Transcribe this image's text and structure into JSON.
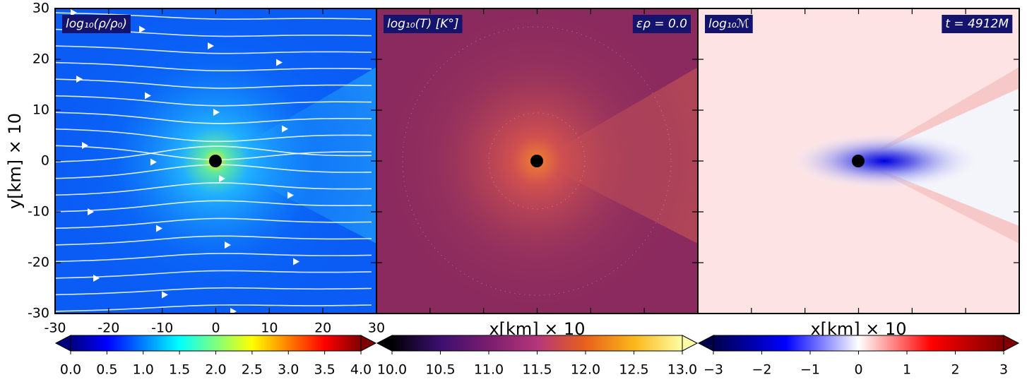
{
  "chart_data": [
    {
      "type": "heatmap",
      "title": "log₁₀(ρ/ρ₀)",
      "ylabel": "y[km] × 10",
      "xlim": [
        -30,
        30
      ],
      "ylim": [
        -30,
        30
      ],
      "xticks": [
        -30,
        -20,
        -10,
        0,
        10,
        20,
        30
      ],
      "yticks": [
        -30,
        -20,
        -10,
        0,
        10,
        20,
        30
      ],
      "clim": [
        0,
        4
      ],
      "cticks": [
        {
          "value": 0,
          "label": "0.0"
        },
        {
          "value": 0.5,
          "label": "0.5"
        },
        {
          "value": 1,
          "label": "1.0"
        },
        {
          "value": 1.5,
          "label": "1.5"
        },
        {
          "value": 2,
          "label": "2.0"
        },
        {
          "value": 2.5,
          "label": "2.5"
        },
        {
          "value": 3,
          "label": "3.0"
        },
        {
          "value": 3.5,
          "label": "3.5"
        },
        {
          "value": 4,
          "label": "4.0"
        }
      ],
      "colormap": [
        "#00007f",
        "#0000ff",
        "#007fff",
        "#00ffff",
        "#7fff7f",
        "#ffff00",
        "#ff7f00",
        "#ff0000",
        "#7f0000"
      ]
    },
    {
      "type": "heatmap",
      "title": "log₁₀(T) [K°]",
      "annotation": "ερ = 0.0",
      "xlabel": "x[km] × 10",
      "xlim": [
        -30,
        30
      ],
      "ylim": [
        -30,
        30
      ],
      "clim": [
        10,
        13
      ],
      "cticks": [
        {
          "value": 10,
          "label": "10.0"
        },
        {
          "value": 10.5,
          "label": "10.5"
        },
        {
          "value": 11,
          "label": "11.0"
        },
        {
          "value": 11.5,
          "label": "11.5"
        },
        {
          "value": 12,
          "label": "12.0"
        },
        {
          "value": 12.5,
          "label": "12.5"
        },
        {
          "value": 13,
          "label": "13.0"
        }
      ],
      "colormap": [
        "#000004",
        "#3b0f70",
        "#7a1d6d",
        "#b5367a",
        "#e8601c",
        "#fbb61a",
        "#fcffa4"
      ]
    },
    {
      "type": "heatmap",
      "title": "log₁₀ℳ",
      "annotation": "t = 4912M",
      "xlabel": "x[km] × 10",
      "xlim": [
        -30,
        30
      ],
      "ylim": [
        -30,
        30
      ],
      "clim": [
        -3,
        3
      ],
      "cticks": [
        {
          "value": -3,
          "label": "−3"
        },
        {
          "value": -2,
          "label": "−2"
        },
        {
          "value": -1,
          "label": "−1"
        },
        {
          "value": 0,
          "label": "0"
        },
        {
          "value": 1,
          "label": "1"
        },
        {
          "value": 2,
          "label": "2"
        },
        {
          "value": 3,
          "label": "3"
        }
      ],
      "colormap": [
        "#00004c",
        "#0000ff",
        "#ffffff",
        "#ff0000",
        "#7f0000"
      ]
    }
  ]
}
